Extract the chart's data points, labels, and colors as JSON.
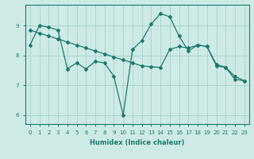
{
  "line1_x": [
    0,
    1,
    2,
    3,
    4,
    5,
    6,
    7,
    8,
    9,
    10,
    11,
    12,
    13,
    14,
    15,
    16,
    17,
    18,
    19,
    20,
    21,
    22,
    23
  ],
  "line1_y": [
    8.35,
    9.0,
    8.95,
    8.85,
    7.55,
    7.75,
    7.55,
    7.8,
    7.75,
    7.3,
    6.0,
    8.2,
    8.5,
    9.05,
    9.4,
    9.3,
    8.65,
    8.15,
    8.35,
    8.3,
    7.65,
    7.6,
    7.2,
    7.15
  ],
  "line2_x": [
    0,
    1,
    2,
    3,
    4,
    5,
    6,
    7,
    8,
    9,
    10,
    11,
    12,
    13,
    14,
    15,
    16,
    17,
    18,
    19,
    20,
    21,
    22,
    23
  ],
  "line2_y": [
    8.85,
    8.75,
    8.65,
    8.55,
    8.45,
    8.35,
    8.25,
    8.15,
    8.05,
    7.95,
    7.85,
    7.75,
    7.65,
    7.62,
    7.6,
    8.2,
    8.3,
    8.25,
    8.35,
    8.3,
    7.7,
    7.6,
    7.3,
    7.15
  ],
  "bg_color": "#ceeae7",
  "grid_color": "#a8d5d0",
  "line_color": "#1a7a6e",
  "xlabel": "Humidex (Indice chaleur)",
  "xlim": [
    -0.5,
    23.5
  ],
  "ylim": [
    5.7,
    9.7
  ],
  "yticks": [
    6,
    7,
    8,
    9
  ],
  "xticks": [
    0,
    1,
    2,
    3,
    4,
    5,
    6,
    7,
    8,
    9,
    10,
    11,
    12,
    13,
    14,
    15,
    16,
    17,
    18,
    19,
    20,
    21,
    22,
    23
  ]
}
